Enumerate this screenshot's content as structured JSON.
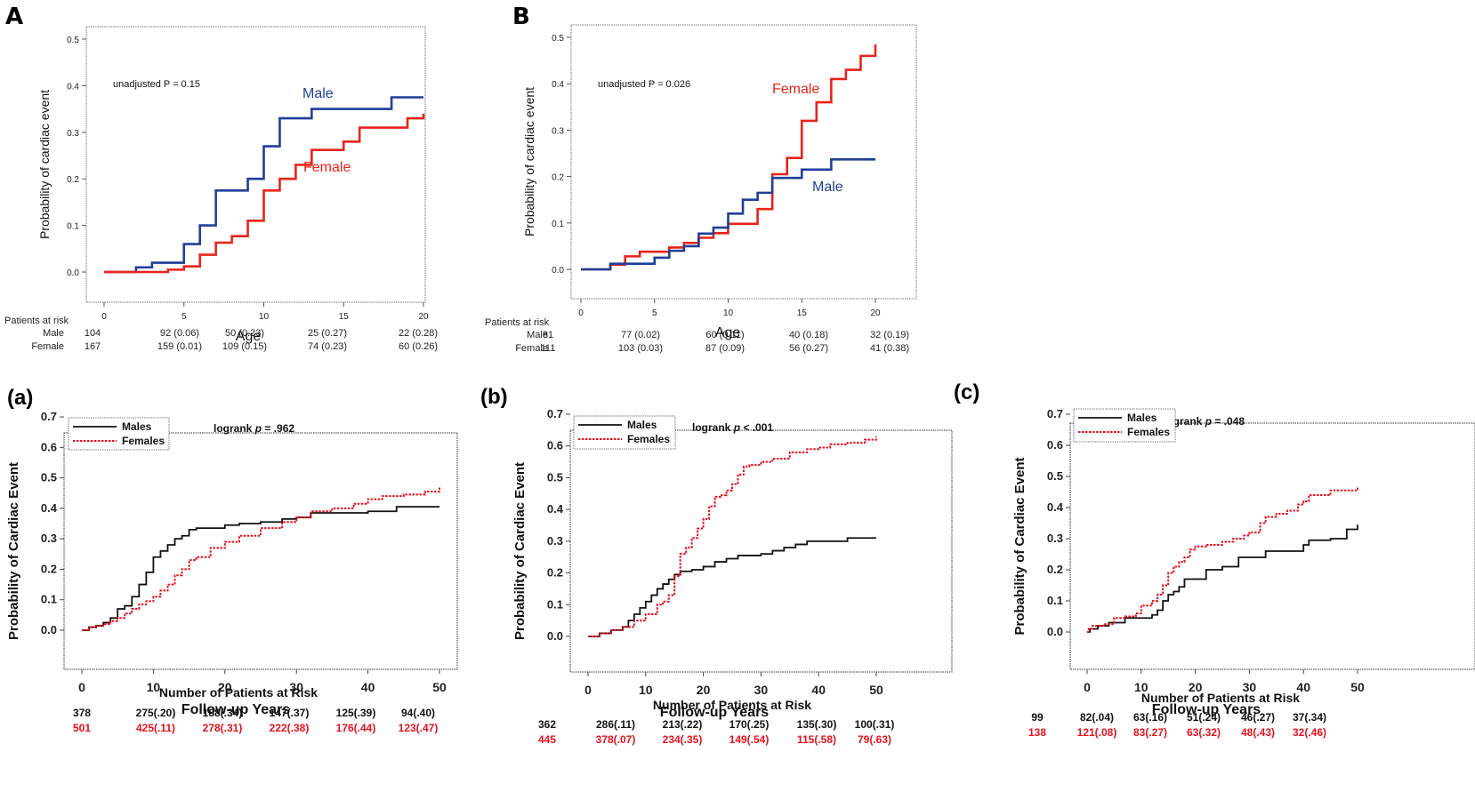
{
  "colors": {
    "male_top": "#1f3f99",
    "female_top": "#e8231b",
    "male_bottom": "#111111",
    "female_bottom": "#e8101e"
  },
  "chart_data": [
    {
      "id": "A",
      "panel_label": "A",
      "type": "line",
      "step": true,
      "xlabel": "Age",
      "ylabel": "Probability of cardiac event",
      "xlim": [
        0,
        20
      ],
      "ylim": [
        0,
        0.5
      ],
      "xticks": [
        "0",
        "5",
        "10",
        "15",
        "20"
      ],
      "yticks": [
        "0.0",
        "0.1",
        "0.2",
        "0.3",
        "0.4",
        "0.5"
      ],
      "annotation": "unadjusted P = 0.15",
      "series": [
        {
          "name": "Male",
          "label": "Male",
          "color_key": "male_top",
          "x": [
            0,
            2,
            3,
            5,
            6,
            7,
            9,
            10,
            11,
            13,
            18,
            20
          ],
          "y": [
            0,
            0.01,
            0.02,
            0.06,
            0.1,
            0.175,
            0.2,
            0.27,
            0.33,
            0.35,
            0.375,
            0.375
          ]
        },
        {
          "name": "Female",
          "label": "Female",
          "color_key": "female_top",
          "x": [
            0,
            2,
            4,
            5,
            6,
            7,
            8,
            9,
            10,
            11,
            12,
            13,
            15,
            16,
            19,
            20
          ],
          "y": [
            0,
            0,
            0.005,
            0.012,
            0.037,
            0.063,
            0.077,
            0.11,
            0.175,
            0.2,
            0.23,
            0.262,
            0.28,
            0.31,
            0.33,
            0.34
          ]
        }
      ],
      "risk_table": {
        "title": "Patients at risk",
        "rows": [
          {
            "label": "Male",
            "values": [
              "104",
              "92 (0.06)",
              "50 (0.23)",
              "25 (0.27)",
              "22 (0.28)"
            ]
          },
          {
            "label": "Female",
            "values": [
              "167",
              "159 (0.01)",
              "109 (0.15)",
              "74 (0.23)",
              "60 (0.26)"
            ]
          }
        ]
      }
    },
    {
      "id": "B",
      "panel_label": "B",
      "type": "line",
      "step": true,
      "xlabel": "Age",
      "ylabel": "Probability of cardiac event",
      "xlim": [
        0,
        20
      ],
      "ylim": [
        0,
        0.5
      ],
      "xticks": [
        "0",
        "5",
        "10",
        "15",
        "20"
      ],
      "yticks": [
        "0.0",
        "0.1",
        "0.2",
        "0.3",
        "0.4",
        "0.5"
      ],
      "annotation": "unadjusted P = 0.026",
      "series": [
        {
          "name": "Female",
          "label": "Female",
          "color_key": "female_top",
          "x": [
            0,
            2,
            3,
            4,
            6,
            7,
            8,
            9,
            10,
            12,
            13,
            14,
            15,
            16,
            17,
            18,
            19,
            20
          ],
          "y": [
            0,
            0.01,
            0.028,
            0.038,
            0.047,
            0.057,
            0.068,
            0.078,
            0.098,
            0.13,
            0.205,
            0.24,
            0.32,
            0.36,
            0.41,
            0.43,
            0.46,
            0.485
          ]
        },
        {
          "name": "Male",
          "label": "Male",
          "color_key": "male_top",
          "x": [
            0,
            2,
            5,
            6,
            7,
            8,
            9,
            10,
            11,
            12,
            13,
            15,
            17,
            20
          ],
          "y": [
            0,
            0.012,
            0.025,
            0.04,
            0.05,
            0.077,
            0.09,
            0.12,
            0.15,
            0.165,
            0.197,
            0.215,
            0.237,
            0.237
          ]
        }
      ],
      "risk_table": {
        "title": "Patients at risk",
        "rows": [
          {
            "label": "Male",
            "values": [
              "81",
              "77 (0.02)",
              "60 (0.11)",
              "40 (0.18)",
              "32 (0.19)"
            ]
          },
          {
            "label": "Female",
            "values": [
              "111",
              "103 (0.03)",
              "87 (0.09)",
              "56 (0.27)",
              "41 (0.38)"
            ]
          }
        ]
      }
    },
    {
      "id": "a",
      "panel_label": "(a)",
      "type": "line",
      "step": true,
      "xlabel": "Follow-up Years",
      "ylabel": "Probability of Cardiac Event",
      "xlim": [
        0,
        50
      ],
      "ylim": [
        0,
        0.7
      ],
      "xticks": [
        "0",
        "10",
        "20",
        "30",
        "40",
        "50"
      ],
      "yticks": [
        "0.0",
        "0.1",
        "0.2",
        "0.3",
        "0.4",
        "0.5",
        "0.6",
        "0.7"
      ],
      "annotation": "logrank p = .962",
      "annotation_parts": [
        "logrank ",
        "p",
        " = .962"
      ],
      "legend": [
        "Males",
        "Females"
      ],
      "series": [
        {
          "name": "Males",
          "color_key": "male_bottom",
          "dashed": false,
          "x": [
            0,
            1,
            2,
            3,
            4,
            5,
            6,
            7,
            8,
            9,
            10,
            11,
            12,
            13,
            14,
            15,
            16,
            18,
            20,
            22,
            25,
            28,
            30,
            32,
            35,
            40,
            43,
            44,
            50
          ],
          "y": [
            0,
            0.01,
            0.015,
            0.025,
            0.04,
            0.07,
            0.08,
            0.11,
            0.15,
            0.19,
            0.24,
            0.26,
            0.28,
            0.3,
            0.31,
            0.33,
            0.335,
            0.335,
            0.345,
            0.35,
            0.355,
            0.365,
            0.37,
            0.385,
            0.385,
            0.39,
            0.39,
            0.405,
            0.405
          ]
        },
        {
          "name": "Females",
          "color_key": "female_bottom",
          "dashed": true,
          "x": [
            0,
            1,
            2,
            3,
            4,
            5,
            6,
            7,
            8,
            9,
            10,
            11,
            12,
            13,
            14,
            15,
            16,
            18,
            20,
            22,
            25,
            28,
            30,
            32,
            35,
            38,
            40,
            42,
            45,
            48,
            50
          ],
          "y": [
            0,
            0.01,
            0.015,
            0.02,
            0.03,
            0.04,
            0.055,
            0.07,
            0.085,
            0.095,
            0.11,
            0.13,
            0.15,
            0.18,
            0.2,
            0.23,
            0.24,
            0.27,
            0.29,
            0.31,
            0.335,
            0.355,
            0.37,
            0.39,
            0.4,
            0.415,
            0.43,
            0.44,
            0.445,
            0.455,
            0.47
          ]
        }
      ],
      "risk_table": {
        "title": "Number of Patients at Risk",
        "rows": [
          {
            "label": "Males",
            "color_key": "male_bottom",
            "values": [
              "378",
              "275(.20)",
              "188(.34)",
              "147(.37)",
              "125(.39)",
              "94(.40)"
            ]
          },
          {
            "label": "Females",
            "color_key": "female_bottom",
            "values": [
              "501",
              "425(.11)",
              "278(.31)",
              "222(.38)",
              "176(.44)",
              "123(.47)"
            ]
          }
        ]
      }
    },
    {
      "id": "b",
      "panel_label": "(b)",
      "type": "line",
      "step": true,
      "xlabel": "Follow-up Years",
      "ylabel": "Probability of Cardiac Event",
      "xlim": [
        0,
        50
      ],
      "ylim": [
        0,
        0.7
      ],
      "xticks": [
        "0",
        "10",
        "20",
        "30",
        "40",
        "50"
      ],
      "yticks": [
        "0.0",
        "0.1",
        "0.2",
        "0.3",
        "0.4",
        "0.5",
        "0.6",
        "0.7"
      ],
      "annotation": "logrank p < .001",
      "annotation_parts": [
        "logrank ",
        "p",
        " < .001"
      ],
      "legend": [
        "Males",
        "Females"
      ],
      "series": [
        {
          "name": "Males",
          "color_key": "male_bottom",
          "dashed": false,
          "x": [
            0,
            2,
            4,
            6,
            7,
            8,
            9,
            10,
            11,
            12,
            13,
            14,
            15,
            16,
            18,
            20,
            22,
            24,
            26,
            28,
            30,
            32,
            34,
            36,
            38,
            40,
            45,
            50
          ],
          "y": [
            0,
            0.01,
            0.02,
            0.03,
            0.05,
            0.07,
            0.09,
            0.11,
            0.13,
            0.15,
            0.165,
            0.18,
            0.195,
            0.205,
            0.21,
            0.22,
            0.235,
            0.245,
            0.255,
            0.255,
            0.26,
            0.27,
            0.28,
            0.29,
            0.3,
            0.3,
            0.31,
            0.31
          ]
        },
        {
          "name": "Females",
          "color_key": "female_bottom",
          "dashed": true,
          "x": [
            0,
            2,
            4,
            6,
            8,
            10,
            12,
            13,
            14,
            15,
            16,
            17,
            18,
            19,
            20,
            21,
            22,
            23,
            24,
            25,
            26,
            27,
            28,
            30,
            32,
            35,
            38,
            40,
            42,
            45,
            48,
            50
          ],
          "y": [
            0,
            0.01,
            0.02,
            0.03,
            0.05,
            0.07,
            0.1,
            0.11,
            0.13,
            0.19,
            0.26,
            0.28,
            0.31,
            0.34,
            0.37,
            0.41,
            0.44,
            0.445,
            0.46,
            0.48,
            0.51,
            0.535,
            0.54,
            0.55,
            0.56,
            0.58,
            0.59,
            0.595,
            0.605,
            0.61,
            0.62,
            0.63
          ]
        }
      ],
      "risk_table": {
        "title": "Number of Patients at Risk",
        "rows": [
          {
            "label": "Males",
            "color_key": "male_bottom",
            "values": [
              "362",
              "286(.11)",
              "213(.22)",
              "170(.25)",
              "135(.30)",
              "100(.31)"
            ]
          },
          {
            "label": "Females",
            "color_key": "female_bottom",
            "values": [
              "445",
              "378(.07)",
              "234(.35)",
              "149(.54)",
              "115(.58)",
              "79(.63)"
            ]
          }
        ]
      }
    },
    {
      "id": "c",
      "panel_label": "(c)",
      "type": "line",
      "step": true,
      "xlabel": "Follow-up Years",
      "ylabel": "Probability of Cardiac Event",
      "xlim": [
        0,
        50
      ],
      "ylim": [
        0,
        0.7
      ],
      "xticks": [
        "0",
        "10",
        "20",
        "30",
        "40",
        "50"
      ],
      "yticks": [
        "0.0",
        "0.1",
        "0.2",
        "0.3",
        "0.4",
        "0.5",
        "0.6",
        "0.7"
      ],
      "annotation": "logrank p = .048",
      "annotation_parts": [
        "logrank ",
        "p",
        " = .048"
      ],
      "legend": [
        "Males",
        "Females"
      ],
      "series": [
        {
          "name": "Males",
          "color_key": "male_bottom",
          "dashed": false,
          "x": [
            0,
            0.5,
            2,
            4,
            7,
            12,
            13,
            14,
            15,
            16,
            17,
            18,
            22,
            25,
            28,
            33,
            40,
            41,
            45,
            48,
            50
          ],
          "y": [
            0,
            0.01,
            0.02,
            0.03,
            0.045,
            0.055,
            0.07,
            0.1,
            0.12,
            0.13,
            0.145,
            0.17,
            0.2,
            0.21,
            0.24,
            0.26,
            0.28,
            0.295,
            0.3,
            0.33,
            0.345
          ]
        },
        {
          "name": "Females",
          "color_key": "female_bottom",
          "dashed": true,
          "x": [
            0,
            0.3,
            1,
            3,
            5,
            7,
            9,
            10,
            12,
            13,
            14,
            15,
            16,
            17,
            18,
            19,
            20,
            22,
            25,
            27,
            29,
            30,
            32,
            33,
            35,
            37,
            39,
            40,
            41,
            45,
            50
          ],
          "y": [
            0,
            0.01,
            0.02,
            0.025,
            0.045,
            0.05,
            0.06,
            0.085,
            0.1,
            0.12,
            0.15,
            0.19,
            0.21,
            0.225,
            0.24,
            0.265,
            0.275,
            0.28,
            0.29,
            0.3,
            0.31,
            0.32,
            0.35,
            0.37,
            0.38,
            0.39,
            0.41,
            0.42,
            0.44,
            0.455,
            0.465
          ]
        }
      ],
      "risk_table": {
        "title": "Number of Patients at Risk",
        "rows": [
          {
            "label": "Males",
            "color_key": "male_bottom",
            "values": [
              "99",
              "82(.04)",
              "63(.16)",
              "51(.24)",
              "46(.27)",
              "37(.34)"
            ]
          },
          {
            "label": "Females",
            "color_key": "female_bottom",
            "values": [
              "138",
              "121(.08)",
              "83(.27)",
              "63(.32)",
              "48(.43)",
              "32(.46)"
            ]
          }
        ]
      }
    }
  ]
}
